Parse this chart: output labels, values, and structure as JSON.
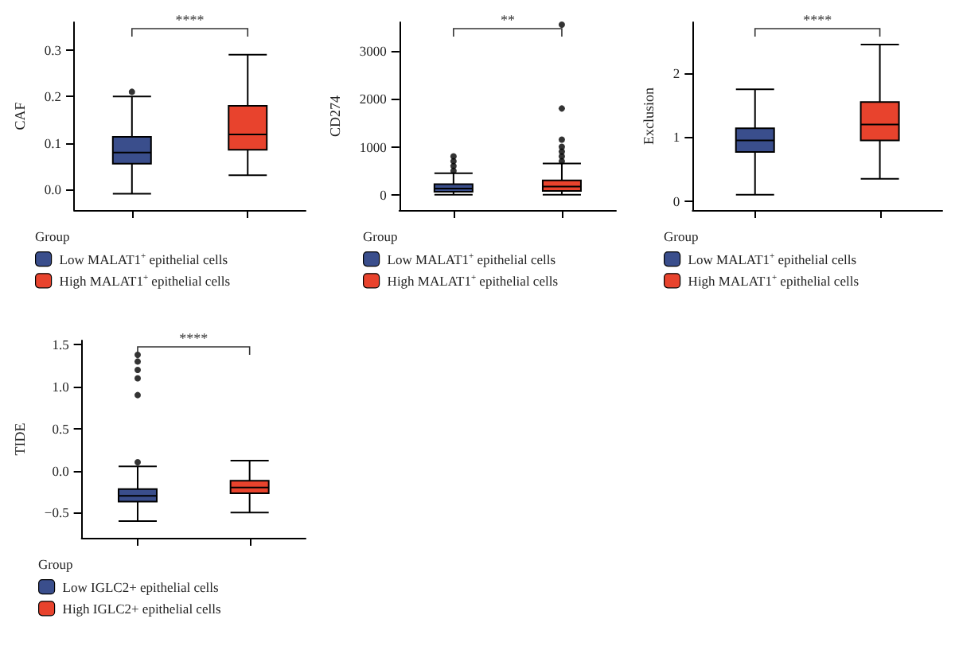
{
  "chart_data": [
    {
      "type": "box",
      "ylabel": "CAF",
      "legend_title": "Group",
      "categories": [
        null,
        null
      ],
      "ylim": [
        -0.045,
        0.36
      ],
      "yticks": [
        {
          "value": 0,
          "label": "0.0"
        },
        {
          "value": 0.1,
          "label": "0.1"
        },
        {
          "value": 0.2,
          "label": "0.2"
        },
        {
          "value": 0.3,
          "label": "0.3"
        }
      ],
      "grid": false,
      "legend": "bottom left",
      "marker": "circle",
      "annotations": [
        "****"
      ],
      "series": [
        {
          "name": "Low MALAT1$^{+}$ epithelial cells",
          "color": "#3a4e8c",
          "boxes": [
            {
              "low": -0.01,
              "q1": 0.055,
              "median": 0.079,
              "q3": 0.113,
              "high": 0.2,
              "outliers": [
                0.21
              ]
            },
            null
          ]
        },
        {
          "name": "High MALAT1$^{+}$ epithelial cells",
          "color": "#e8432d",
          "boxes": [
            null,
            {
              "low": 0.03,
              "q1": 0.085,
              "median": 0.118,
              "q3": 0.18,
              "high": 0.29
            }
          ]
        }
      ]
    },
    {
      "type": "box",
      "ylabel": "CD274",
      "legend_title": "Group",
      "categories": [
        null,
        null
      ],
      "ylim": [
        -320,
        3600
      ],
      "yticks": [
        0,
        1000,
        2000,
        3000
      ],
      "grid": false,
      "legend": "bottom left",
      "marker": "circle",
      "annotations": [
        "**"
      ],
      "series": [
        {
          "name": "Low MALAT1$^{+}$ epithelial cells",
          "color": "#3a4e8c",
          "boxes": [
            {
              "low": 0,
              "q1": 60,
              "median": 130,
              "q3": 220,
              "high": 450,
              "outliers": [
                500,
                600,
                700,
                800
              ]
            },
            null
          ]
        },
        {
          "name": "High MALAT1$^{+}$ epithelial cells",
          "color": "#e8432d",
          "boxes": [
            null,
            {
              "low": 0,
              "q1": 80,
              "median": 170,
              "q3": 300,
              "high": 650,
              "outliers": [
                700,
                800,
                900,
                1000,
                1150,
                1800,
                3550
              ]
            }
          ]
        }
      ]
    },
    {
      "type": "box",
      "ylabel": "Exclusion",
      "legend_title": "Group",
      "categories": [
        null,
        null
      ],
      "ylim": [
        -0.14,
        2.8
      ],
      "yticks": [
        0,
        1,
        2
      ],
      "grid": false,
      "legend": "bottom left",
      "annotations": [
        "****"
      ],
      "series": [
        {
          "name": "Low MALAT1$^{+}$ epithelial cells",
          "color": "#3a4e8c",
          "boxes": [
            {
              "low": 0.1,
              "q1": 0.77,
              "median": 0.95,
              "q3": 1.14,
              "high": 1.75
            },
            null
          ]
        },
        {
          "name": "High MALAT1$^{+}$ epithelial cells",
          "color": "#e8432d",
          "boxes": [
            null,
            {
              "low": 0.35,
              "q1": 0.95,
              "median": 1.2,
              "q3": 1.55,
              "high": 2.45
            }
          ]
        }
      ]
    },
    {
      "type": "box",
      "ylabel": "TIDE",
      "legend_title": "Group",
      "categories": [
        null,
        null
      ],
      "ylim": [
        -0.8,
        1.55
      ],
      "yticks": [
        {
          "value": -0.5,
          "label": "−0.5"
        },
        {
          "value": 0,
          "label": "0.0"
        },
        {
          "value": 0.5,
          "label": "0.5"
        },
        {
          "value": 1,
          "label": "1.0"
        },
        {
          "value": 1.5,
          "label": "1.5"
        }
      ],
      "grid": false,
      "legend": "bottom left",
      "marker": "circle",
      "annotations": [
        "****"
      ],
      "series": [
        {
          "name": "Low IGLC2+ epithelial cells",
          "color": "#3a4e8c",
          "boxes": [
            {
              "low": -0.6,
              "q1": -0.37,
              "median": -0.3,
              "q3": -0.22,
              "high": 0.05,
              "outliers": [
                0.1,
                0.9,
                1.1,
                1.2,
                1.3,
                1.38
              ]
            },
            null
          ]
        },
        {
          "name": "High IGLC2+ epithelial cells",
          "color": "#e8432d",
          "boxes": [
            null,
            {
              "low": -0.5,
              "q1": -0.27,
              "median": -0.2,
              "q3": -0.12,
              "high": 0.12
            }
          ]
        }
      ]
    }
  ]
}
